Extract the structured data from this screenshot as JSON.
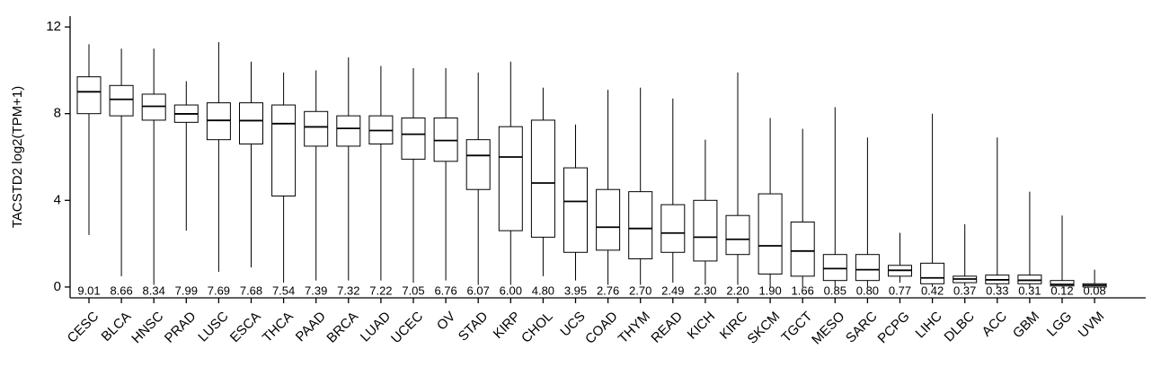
{
  "chart_data": {
    "type": "box",
    "y_label": "TACSTD2 log2(TPM+1)",
    "categories": [
      "CESC",
      "BLCA",
      "HNSC",
      "PRAD",
      "LUSC",
      "ESCA",
      "THCA",
      "PAAD",
      "BRCA",
      "LUAD",
      "UCEC",
      "OV",
      "STAD",
      "KIRP",
      "CHOL",
      "UCS",
      "COAD",
      "THYM",
      "READ",
      "KICH",
      "KIRC",
      "SKCM",
      "TGCT",
      "MESO",
      "SARC",
      "PCPG",
      "LIHC",
      "DLBC",
      "ACC",
      "GBM",
      "LGG",
      "UVM"
    ],
    "min": [
      2.4,
      0.5,
      0.1,
      2.6,
      0.7,
      0.9,
      0.2,
      0.3,
      0.3,
      0.3,
      0.2,
      0.3,
      0.1,
      0.1,
      0.5,
      0.3,
      0.1,
      0.1,
      0.2,
      0.1,
      0.1,
      0.0,
      0.0,
      0.0,
      0.0,
      0.2,
      0.0,
      0.05,
      0.0,
      0.0,
      0.0,
      0.0
    ],
    "q1": [
      8.0,
      7.9,
      7.7,
      7.6,
      6.8,
      6.6,
      4.2,
      6.5,
      6.5,
      6.6,
      5.9,
      5.8,
      4.5,
      2.6,
      2.3,
      1.6,
      1.7,
      1.3,
      1.6,
      1.2,
      1.5,
      0.6,
      0.5,
      0.3,
      0.3,
      0.5,
      0.15,
      0.2,
      0.15,
      0.15,
      0.05,
      0.0
    ],
    "median": [
      9.01,
      8.66,
      8.34,
      7.99,
      7.69,
      7.68,
      7.54,
      7.39,
      7.32,
      7.22,
      7.05,
      6.76,
      6.07,
      6.0,
      4.8,
      3.95,
      2.76,
      2.7,
      2.49,
      2.3,
      2.2,
      1.9,
      1.66,
      0.85,
      0.8,
      0.77,
      0.42,
      0.37,
      0.33,
      0.31,
      0.12,
      0.08
    ],
    "value_labels": [
      "9.01",
      "8.66",
      "8.34",
      "7.99",
      "7.69",
      "7.68",
      "7.54",
      "7.39",
      "7.32",
      "7.22",
      "7.05",
      "6.76",
      "6.07",
      "6.00",
      "4.80",
      "3.95",
      "2.76",
      "2.70",
      "2.49",
      "2.30",
      "2.20",
      "1.90",
      "1.66",
      "0.85",
      "0.80",
      "0.77",
      "0.42",
      "0.37",
      "0.33",
      "0.31",
      "0.12",
      "0.08"
    ],
    "q3": [
      9.7,
      9.3,
      8.9,
      8.4,
      8.5,
      8.5,
      8.4,
      8.1,
      7.9,
      7.9,
      7.8,
      7.8,
      6.8,
      7.4,
      7.7,
      5.5,
      4.5,
      4.4,
      3.8,
      4.0,
      3.3,
      4.3,
      3.0,
      1.5,
      1.5,
      1.0,
      1.1,
      0.5,
      0.55,
      0.55,
      0.3,
      0.15
    ],
    "max": [
      11.2,
      11.0,
      11.0,
      9.5,
      11.3,
      10.4,
      9.9,
      10.0,
      10.6,
      10.2,
      10.1,
      10.1,
      9.9,
      10.4,
      9.2,
      7.5,
      9.1,
      9.2,
      8.7,
      6.8,
      9.9,
      7.8,
      7.3,
      8.3,
      6.9,
      2.5,
      8.0,
      2.9,
      6.9,
      4.4,
      3.3,
      0.8
    ],
    "ylim": [
      -0.5,
      12.5
    ],
    "yticks": [
      0,
      4,
      8,
      12
    ]
  }
}
